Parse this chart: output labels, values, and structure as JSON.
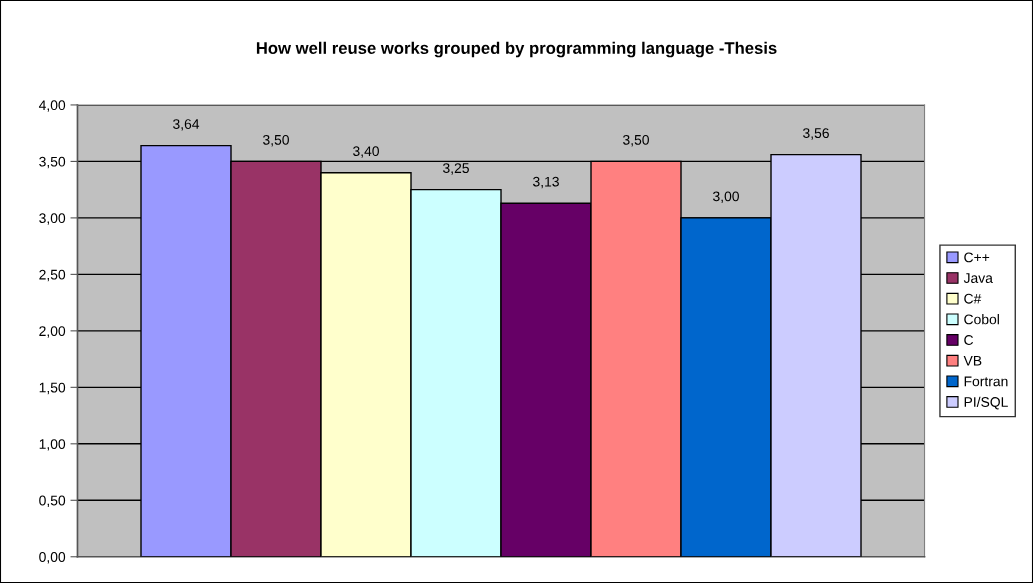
{
  "chart_data": {
    "type": "bar",
    "title": "How well reuse works grouped by programming language -Thesis",
    "categories": [
      null
    ],
    "series": [
      {
        "name": "C++",
        "color": "#9999ff",
        "values": [
          3.64
        ],
        "value_labels": [
          "3,64"
        ]
      },
      {
        "name": "Java",
        "color": "#993366",
        "values": [
          3.5
        ],
        "value_labels": [
          "3,50"
        ]
      },
      {
        "name": "C#",
        "color": "#ffffcc",
        "values": [
          3.4
        ],
        "value_labels": [
          "3,40"
        ]
      },
      {
        "name": "Cobol",
        "color": "#ccffff",
        "values": [
          3.25
        ],
        "value_labels": [
          "3,25"
        ]
      },
      {
        "name": "C",
        "color": "#660066",
        "values": [
          3.13
        ],
        "value_labels": [
          "3,13"
        ]
      },
      {
        "name": "VB",
        "color": "#ff8080",
        "values": [
          3.5
        ],
        "value_labels": [
          "3,50"
        ]
      },
      {
        "name": "Fortran",
        "color": "#0066cc",
        "values": [
          3.0
        ],
        "value_labels": [
          "3,00"
        ]
      },
      {
        "name": "PI/SQL",
        "color": "#ccccff",
        "values": [
          3.56
        ],
        "value_labels": [
          "3,56"
        ]
      }
    ],
    "ylim": [
      0,
      4
    ],
    "yticks": [
      {
        "value": 0,
        "label": "0,00"
      },
      {
        "value": 0.5,
        "label": "0,50"
      },
      {
        "value": 1,
        "label": "1,00"
      },
      {
        "value": 1.5,
        "label": "1,50"
      },
      {
        "value": 2,
        "label": "2,00"
      },
      {
        "value": 2.5,
        "label": "2,50"
      },
      {
        "value": 3,
        "label": "3,00"
      },
      {
        "value": 3.5,
        "label": "3,50"
      },
      {
        "value": 4,
        "label": "4,00"
      }
    ],
    "grid": "y",
    "legend": "right",
    "tick_labels": "y"
  }
}
